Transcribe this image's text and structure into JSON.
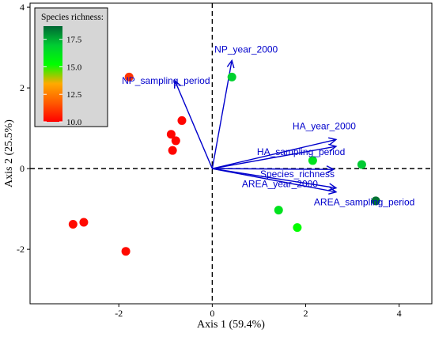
{
  "chart_data": {
    "type": "scatter",
    "title": "",
    "xlabel": "Axis 1 (59.4%)",
    "ylabel": "Axis 2 (25.5%)",
    "xlim": [
      -3.9,
      4.7
    ],
    "ylim": [
      -3.35,
      4.1
    ],
    "xticks": [
      -2,
      0,
      2,
      4
    ],
    "yticks": [
      -2,
      0,
      2,
      4
    ],
    "grid": false,
    "reference_lines": {
      "x": 0,
      "y": 0,
      "style": "dashed"
    },
    "legend": {
      "title": "Species richness:",
      "placement": "top-left",
      "ticks": [
        10.0,
        12.5,
        15.0,
        17.5
      ],
      "range": [
        10.0,
        18.7
      ],
      "gradient": [
        "#ff0000",
        "#ff5a00",
        "#ffaa00",
        "#00ff00",
        "#00cc33",
        "#006633"
      ]
    },
    "points": [
      {
        "x": 0.42,
        "y": 2.27,
        "richness": 16.8
      },
      {
        "x": -1.78,
        "y": 2.27,
        "richness": 11.0
      },
      {
        "x": -0.65,
        "y": 1.19,
        "richness": 10.1
      },
      {
        "x": -0.88,
        "y": 0.85,
        "richness": 10.1
      },
      {
        "x": -0.78,
        "y": 0.69,
        "richness": 10.1
      },
      {
        "x": -0.85,
        "y": 0.45,
        "richness": 10.1
      },
      {
        "x": -2.98,
        "y": -1.38,
        "richness": 10.2
      },
      {
        "x": -2.75,
        "y": -1.33,
        "richness": 10.2
      },
      {
        "x": -1.85,
        "y": -2.05,
        "richness": 10.2
      },
      {
        "x": 2.15,
        "y": 0.2,
        "richness": 16.2
      },
      {
        "x": 3.2,
        "y": 0.1,
        "richness": 17.0
      },
      {
        "x": 3.5,
        "y": -0.8,
        "richness": 18.5
      },
      {
        "x": 1.42,
        "y": -1.03,
        "richness": 16.2
      },
      {
        "x": 1.82,
        "y": -1.46,
        "richness": 15.2
      }
    ],
    "vectors": [
      {
        "label": "NP_year_2000",
        "x": 0.42,
        "y": 2.68
      },
      {
        "label": "NP_sampling_period",
        "x": -0.8,
        "y": 2.18
      },
      {
        "label": "HA_year_2000",
        "x": 2.65,
        "y": 0.72
      },
      {
        "label": "HA_sampling_period",
        "x": 2.65,
        "y": 0.55
      },
      {
        "label": "Species_richness",
        "x": 2.6,
        "y": -0.02
      },
      {
        "label": "AREA_year_2000",
        "x": 2.65,
        "y": -0.48
      },
      {
        "label": "AREA_sampling_period",
        "x": 2.65,
        "y": -0.58
      }
    ],
    "colors": {
      "vector": "#0000cc",
      "axis": "#000000",
      "legend_bg": "#d6d6d6"
    }
  }
}
